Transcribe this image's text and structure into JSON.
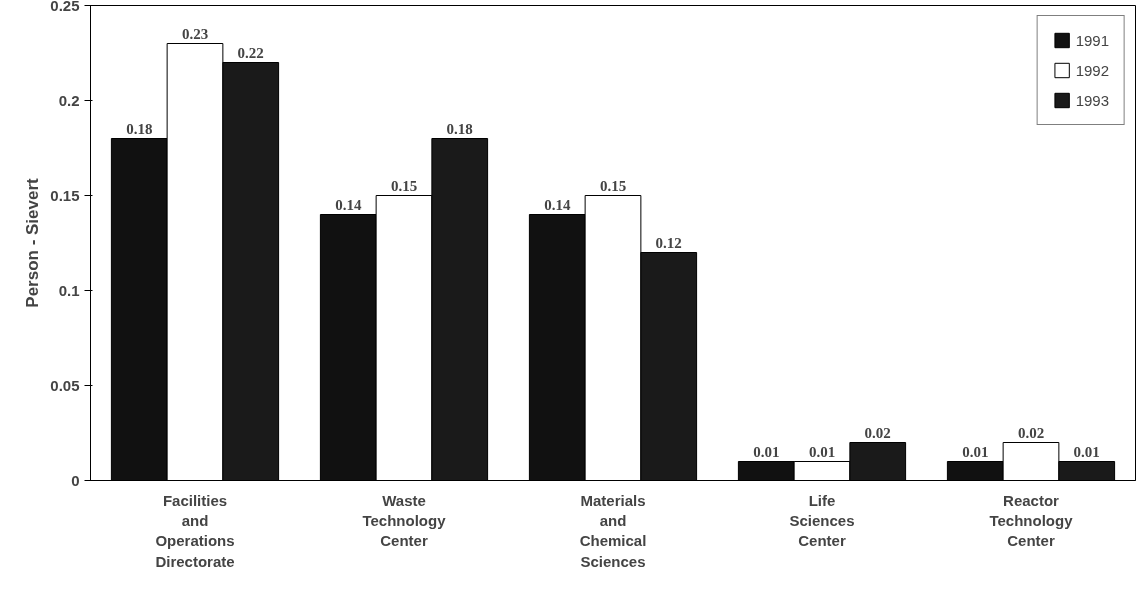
{
  "chart_data": {
    "type": "bar",
    "ylabel": "Person - Sievert",
    "categories": [
      "Facilities\nand\nOperations\nDirectorate",
      "Waste\nTechnology\nCenter",
      "Materials\nand\nChemical\nSciences",
      "Life\nSciences\nCenter",
      "Reactor\nTechnology\nCenter"
    ],
    "series": [
      {
        "name": "1991",
        "color": "#111111",
        "values": [
          0.18,
          0.14,
          0.14,
          0.01,
          0.01
        ]
      },
      {
        "name": "1992",
        "color": "#ffffff",
        "values": [
          0.23,
          0.15,
          0.15,
          0.01,
          0.02
        ]
      },
      {
        "name": "1993",
        "color": "#1a1a1a",
        "values": [
          0.22,
          0.18,
          0.12,
          0.02,
          0.01
        ]
      }
    ],
    "ylim": [
      0,
      0.25
    ],
    "yticks": [
      0,
      0.05,
      {
        "value": 0.1,
        "label": "0.1"
      },
      0.15,
      {
        "value": 0.2,
        "label": "0.2"
      },
      0.25
    ],
    "data_labels": true,
    "legend": "top right",
    "grid": false
  }
}
